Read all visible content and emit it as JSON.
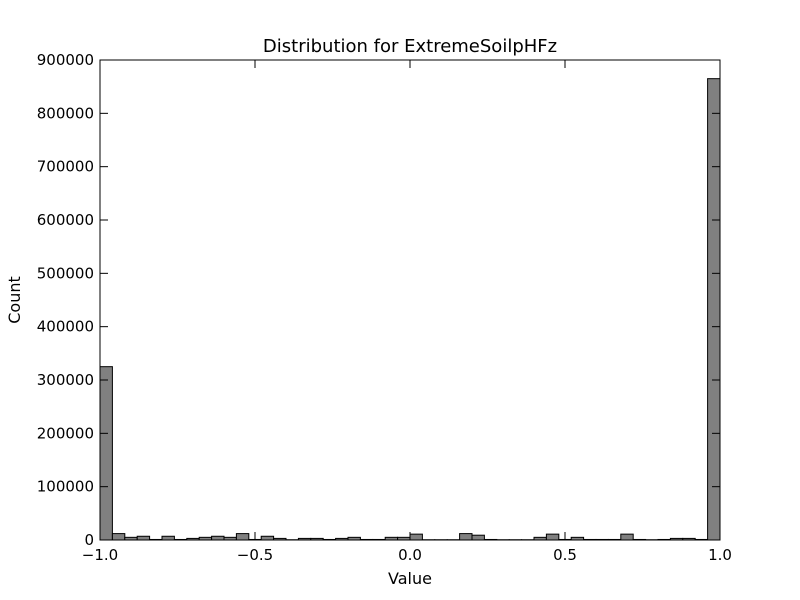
{
  "chart_data": {
    "type": "bar",
    "title": "Distribution for ExtremeSoilpHFz",
    "xlabel": "Value",
    "ylabel": "Count",
    "xlim": [
      -1.0,
      1.0
    ],
    "ylim": [
      0,
      900000
    ],
    "bin_width": 0.04,
    "bins": [
      {
        "x0": -1.0,
        "value": 325000
      },
      {
        "x0": -0.96,
        "value": 12000
      },
      {
        "x0": -0.92,
        "value": 5000
      },
      {
        "x0": -0.88,
        "value": 7000
      },
      {
        "x0": -0.84,
        "value": 1000
      },
      {
        "x0": -0.8,
        "value": 7000
      },
      {
        "x0": -0.76,
        "value": 1000
      },
      {
        "x0": -0.72,
        "value": 3000
      },
      {
        "x0": -0.68,
        "value": 5000
      },
      {
        "x0": -0.64,
        "value": 7000
      },
      {
        "x0": -0.6,
        "value": 5000
      },
      {
        "x0": -0.56,
        "value": 12000
      },
      {
        "x0": -0.52,
        "value": 1000
      },
      {
        "x0": -0.48,
        "value": 7000
      },
      {
        "x0": -0.44,
        "value": 3000
      },
      {
        "x0": -0.4,
        "value": 500
      },
      {
        "x0": -0.36,
        "value": 3000
      },
      {
        "x0": -0.32,
        "value": 3000
      },
      {
        "x0": -0.28,
        "value": 1000
      },
      {
        "x0": -0.24,
        "value": 3000
      },
      {
        "x0": -0.2,
        "value": 5000
      },
      {
        "x0": -0.16,
        "value": 1000
      },
      {
        "x0": -0.12,
        "value": 1000
      },
      {
        "x0": -0.08,
        "value": 5000
      },
      {
        "x0": -0.04,
        "value": 5000
      },
      {
        "x0": 0.0,
        "value": 11000
      },
      {
        "x0": 0.04,
        "value": 500
      },
      {
        "x0": 0.08,
        "value": 500
      },
      {
        "x0": 0.12,
        "value": 500
      },
      {
        "x0": 0.16,
        "value": 12000
      },
      {
        "x0": 0.2,
        "value": 9000
      },
      {
        "x0": 0.24,
        "value": 1000
      },
      {
        "x0": 0.28,
        "value": 500
      },
      {
        "x0": 0.32,
        "value": 500
      },
      {
        "x0": 0.36,
        "value": 500
      },
      {
        "x0": 0.4,
        "value": 5000
      },
      {
        "x0": 0.44,
        "value": 11000
      },
      {
        "x0": 0.48,
        "value": 1000
      },
      {
        "x0": 0.52,
        "value": 5000
      },
      {
        "x0": 0.56,
        "value": 1000
      },
      {
        "x0": 0.6,
        "value": 1000
      },
      {
        "x0": 0.64,
        "value": 1000
      },
      {
        "x0": 0.68,
        "value": 11000
      },
      {
        "x0": 0.72,
        "value": 1000
      },
      {
        "x0": 0.76,
        "value": 500
      },
      {
        "x0": 0.8,
        "value": 1000
      },
      {
        "x0": 0.84,
        "value": 3000
      },
      {
        "x0": 0.88,
        "value": 3000
      },
      {
        "x0": 0.92,
        "value": 1000
      },
      {
        "x0": 0.96,
        "value": 865000
      }
    ],
    "x_ticks": [
      {
        "value": -1.0,
        "label": "−1.0"
      },
      {
        "value": -0.5,
        "label": "−0.5"
      },
      {
        "value": 0.0,
        "label": "0.0"
      },
      {
        "value": 0.5,
        "label": "0.5"
      },
      {
        "value": 1.0,
        "label": "1.0"
      }
    ],
    "y_ticks": [
      {
        "value": 0,
        "label": "0"
      },
      {
        "value": 100000,
        "label": "100000"
      },
      {
        "value": 200000,
        "label": "200000"
      },
      {
        "value": 300000,
        "label": "300000"
      },
      {
        "value": 400000,
        "label": "400000"
      },
      {
        "value": 500000,
        "label": "500000"
      },
      {
        "value": 600000,
        "label": "600000"
      },
      {
        "value": 700000,
        "label": "700000"
      },
      {
        "value": 800000,
        "label": "800000"
      },
      {
        "value": 900000,
        "label": "900000"
      }
    ],
    "bar_color": "#808080",
    "edge_color": "#000000",
    "grid": false,
    "legend": "none"
  }
}
